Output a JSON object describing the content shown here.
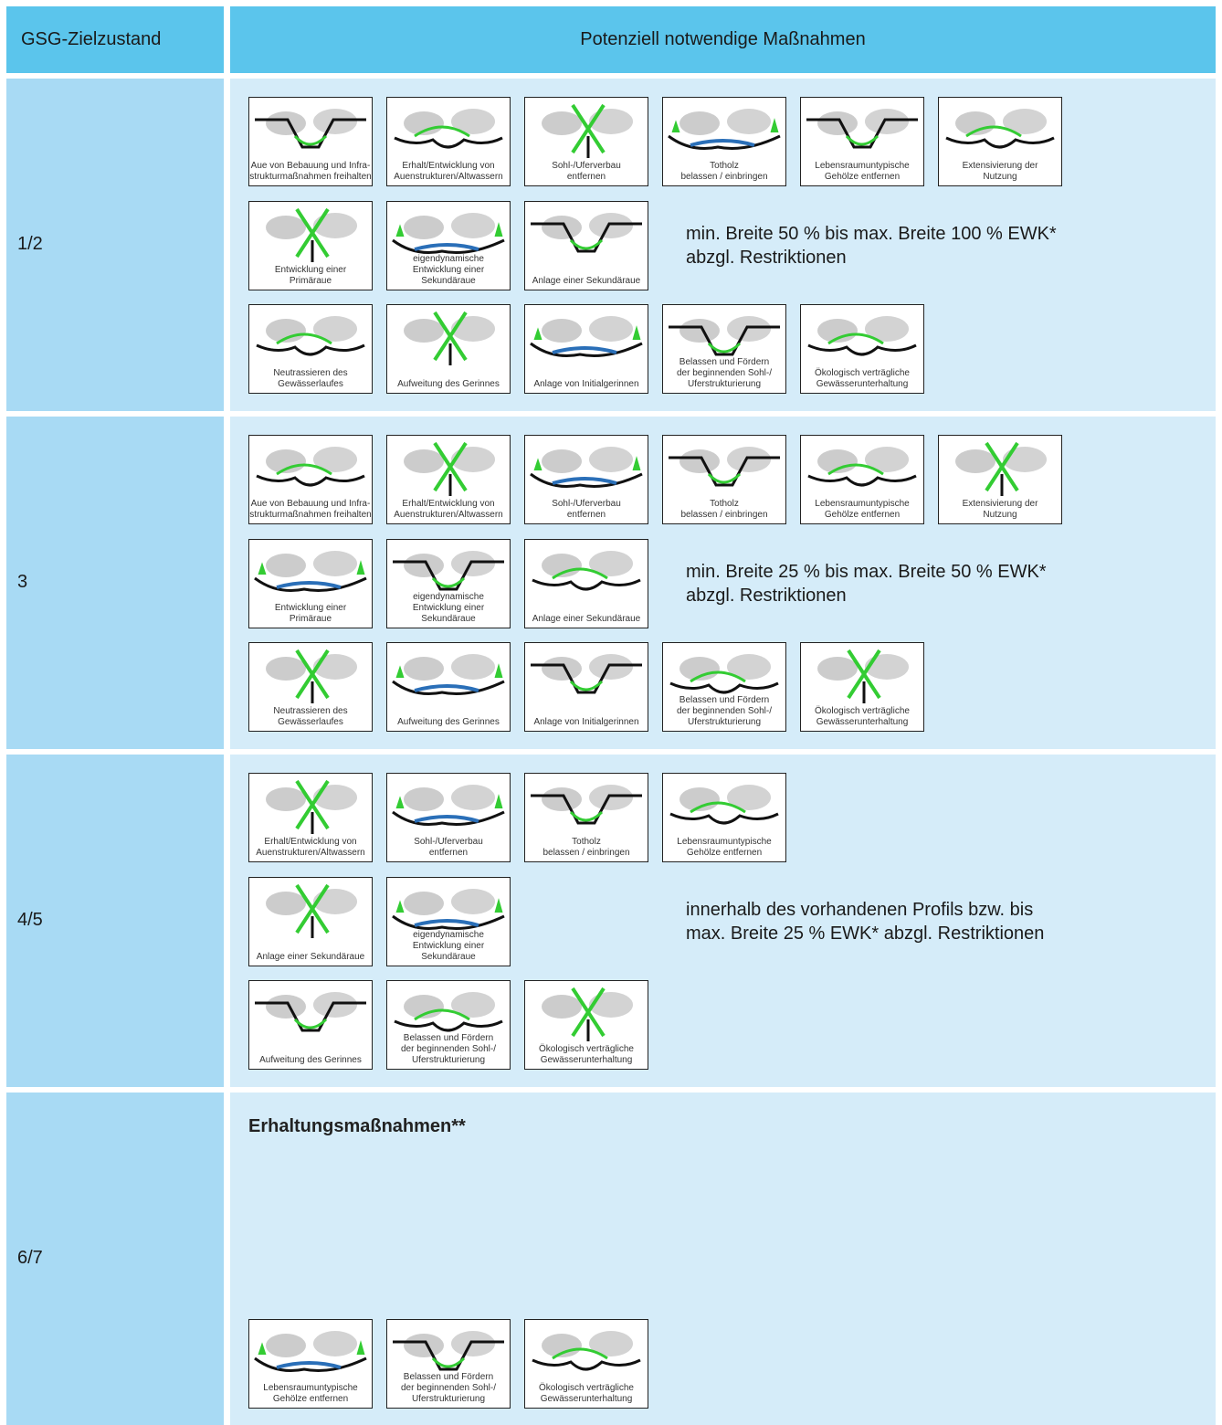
{
  "header": {
    "col1": "GSG-Zielzustand",
    "col2": "Potenziell notwendige Maßnahmen"
  },
  "rows": [
    {
      "label": "1/2",
      "icon_rows": [
        [
          {
            "caption": [
              "Aue von Bebauung und Infra-",
              "strukturmaßnahmen freihalten"
            ]
          },
          {
            "caption": [
              "Erhalt/Entwicklung von",
              "Auenstrukturen/Altwassern"
            ]
          },
          {
            "caption": [
              "Sohl-/Uferverbau",
              "entfernen"
            ]
          },
          {
            "caption": [
              "Totholz",
              "belassen / einbringen"
            ]
          },
          {
            "caption": [
              "Lebensraumuntypische",
              "Gehölze entfernen"
            ]
          },
          {
            "caption": [
              "Extensivierung der",
              "Nutzung"
            ]
          }
        ],
        [
          {
            "caption": [
              "Entwicklung einer",
              "Primäraue"
            ]
          },
          {
            "caption": [
              "eigendynamische",
              "Entwicklung einer",
              "Sekundäraue"
            ]
          },
          {
            "caption": [
              "Anlage einer Sekundäraue"
            ]
          }
        ],
        [
          {
            "caption": [
              "Neutrassieren des",
              "Gewässerlaufes"
            ]
          },
          {
            "caption": [
              "Aufweitung des Gerinnes"
            ]
          },
          {
            "caption": [
              "Anlage von Initialgerinnen"
            ]
          },
          {
            "caption": [
              "Belassen und Fördern",
              "der beginnenden Sohl-/",
              "Uferstrukturierung"
            ]
          },
          {
            "caption": [
              "Ökologisch verträgliche",
              "Gewässerunterhaltung"
            ]
          }
        ]
      ],
      "note": [
        "min. Breite 50 % bis max. Breite 100 % EWK*",
        "abzgl. Restriktionen"
      ]
    },
    {
      "label": "3",
      "icon_rows": [
        [
          {
            "caption": [
              "Aue von Bebauung und Infra-",
              "strukturmaßnahmen freihalten"
            ]
          },
          {
            "caption": [
              "Erhalt/Entwicklung von",
              "Auenstrukturen/Altwassern"
            ]
          },
          {
            "caption": [
              "Sohl-/Uferverbau",
              "entfernen"
            ]
          },
          {
            "caption": [
              "Totholz",
              "belassen / einbringen"
            ]
          },
          {
            "caption": [
              "Lebensraumuntypische",
              "Gehölze entfernen"
            ]
          },
          {
            "caption": [
              "Extensivierung der",
              "Nutzung"
            ]
          }
        ],
        [
          {
            "caption": [
              "Entwicklung einer",
              "Primäraue"
            ]
          },
          {
            "caption": [
              "eigendynamische",
              "Entwicklung einer",
              "Sekundäraue"
            ]
          },
          {
            "caption": [
              "Anlage einer Sekundäraue"
            ]
          }
        ],
        [
          {
            "caption": [
              "Neutrassieren des",
              "Gewässerlaufes"
            ]
          },
          {
            "caption": [
              "Aufweitung des Gerinnes"
            ]
          },
          {
            "caption": [
              "Anlage von Initialgerinnen"
            ]
          },
          {
            "caption": [
              "Belassen und Fördern",
              "der beginnenden Sohl-/",
              "Uferstrukturierung"
            ]
          },
          {
            "caption": [
              "Ökologisch verträgliche",
              "Gewässerunterhaltung"
            ]
          }
        ]
      ],
      "note": [
        "min. Breite 25 % bis max. Breite 50 % EWK*",
        "abzgl. Restriktionen"
      ]
    },
    {
      "label": "4/5",
      "icon_rows": [
        [
          {
            "caption": [
              "Erhalt/Entwicklung von",
              "Auenstrukturen/Altwassern"
            ]
          },
          {
            "caption": [
              "Sohl-/Uferverbau",
              "entfernen"
            ]
          },
          {
            "caption": [
              "Totholz",
              "belassen / einbringen"
            ]
          },
          {
            "caption": [
              "Lebensraumuntypische",
              "Gehölze entfernen"
            ]
          }
        ],
        [
          {
            "caption": [
              "Anlage einer Sekundäraue"
            ]
          },
          {
            "caption": [
              "eigendynamische",
              "Entwicklung einer",
              "Sekundäraue"
            ]
          }
        ],
        [
          {
            "caption": [
              "Aufweitung des Gerinnes"
            ]
          },
          {
            "caption": [
              "Belassen und Fördern",
              "der beginnenden Sohl-/",
              "Uferstrukturierung"
            ]
          },
          {
            "caption": [
              "Ökologisch verträgliche",
              "Gewässerunterhaltung"
            ]
          }
        ]
      ],
      "note": [
        "innerhalb des vorhandenen Profils bzw. bis",
        "max. Breite 25 % EWK* abzgl. Restriktionen"
      ]
    },
    {
      "label": "6/7",
      "heading": "Erhaltungsmaßnahmen**",
      "icon_rows": [
        [
          {
            "caption": [
              "Lebensraumuntypische",
              "Gehölze entfernen"
            ]
          },
          {
            "caption": [
              "Belassen und Fördern",
              "der beginnenden Sohl-/",
              "Uferstrukturierung"
            ]
          },
          {
            "caption": [
              "Ökologisch verträgliche",
              "Gewässerunterhaltung"
            ]
          }
        ]
      ]
    }
  ]
}
